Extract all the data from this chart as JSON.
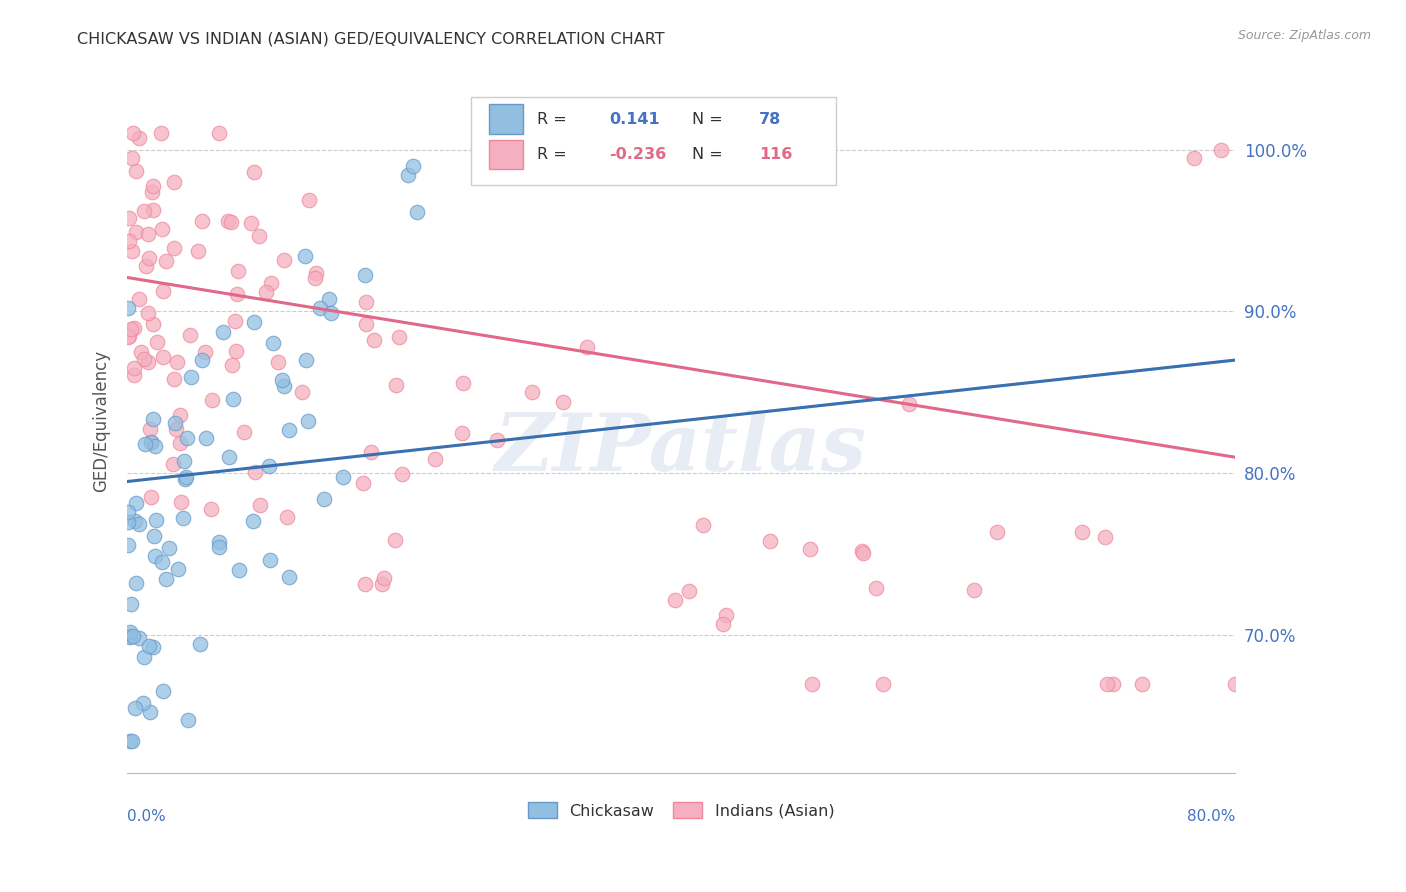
{
  "title": "CHICKASAW VS INDIAN (ASIAN) GED/EQUIVALENCY CORRELATION CHART",
  "source": "Source: ZipAtlas.com",
  "ylabel": "GED/Equivalency",
  "xmin": 0.0,
  "xmax": 0.8,
  "ymin": 0.615,
  "ymax": 1.05,
  "yticks": [
    0.7,
    0.8,
    0.9,
    1.0
  ],
  "ytick_labels": [
    "70.0%",
    "80.0%",
    "90.0%",
    "100.0%"
  ],
  "chickasaw_color": "#92bfdf",
  "chickasaw_edge": "#6699cc",
  "indian_color": "#f4afc0",
  "indian_edge": "#ee8899",
  "blue_line_color": "#3a70b0",
  "pink_line_color": "#e06888",
  "blue_dash_color": "#aaccee",
  "chickasaw_R": 0.141,
  "chickasaw_N": 78,
  "indian_R": -0.236,
  "indian_N": 116,
  "watermark": "ZIPatlas",
  "grid_color": "#cccccc",
  "axis_label_color": "#4472C4",
  "title_color": "#333333",
  "source_color": "#999999",
  "legend_r_color": "#333333",
  "legend_val_color_blue": "#4472C4",
  "legend_val_color_pink": "#e06888"
}
